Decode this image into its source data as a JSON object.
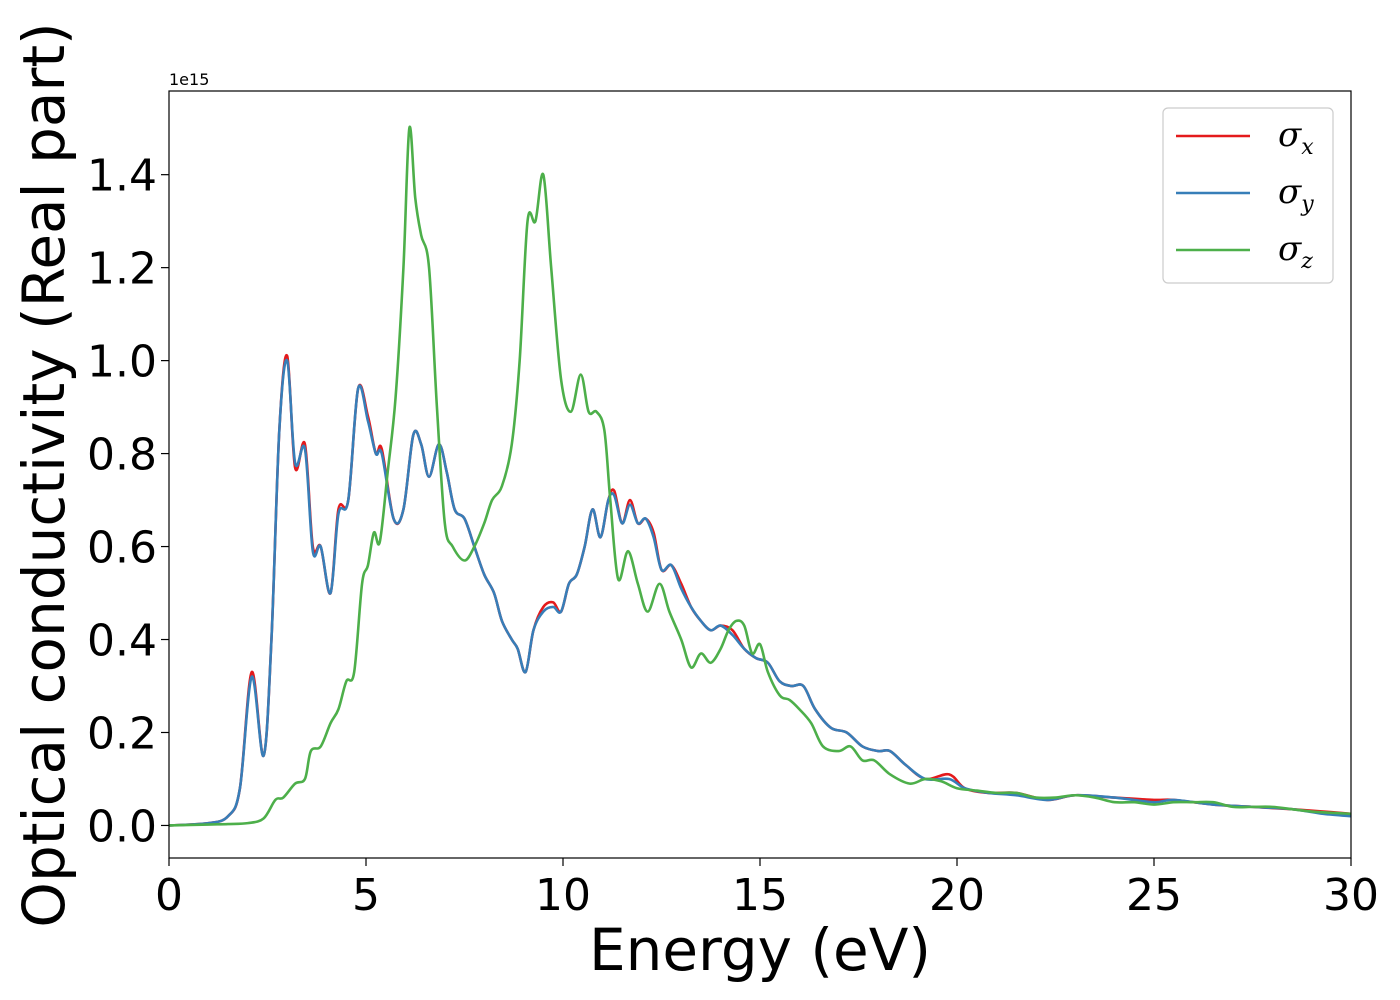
{
  "chart_data": {
    "type": "line",
    "title": "",
    "xlabel": "Energy (eV)",
    "ylabel": "Optical conductivity (Real part)",
    "y_offset_label": "1e15",
    "xlim": [
      0,
      30
    ],
    "ylim": [
      -0.07,
      1.58
    ],
    "x_ticks": [
      0,
      5,
      10,
      15,
      20,
      25,
      30
    ],
    "y_ticks": [
      0.0,
      0.2,
      0.4,
      0.6,
      0.8,
      1.0,
      1.2,
      1.4
    ],
    "x_tick_labels": [
      "0",
      "5",
      "10",
      "15",
      "20",
      "25",
      "30"
    ],
    "y_tick_labels": [
      "0.0",
      "0.2",
      "0.4",
      "0.6",
      "0.8",
      "1.0",
      "1.2",
      "1.4"
    ],
    "grid": false,
    "legend_position": "top-right",
    "series": [
      {
        "name": "σx",
        "legend_symbol": "σ",
        "legend_subscript": "x",
        "color": "#e41a1c",
        "points": [
          [
            0,
            0
          ],
          [
            1,
            0.005
          ],
          [
            1.5,
            0.02
          ],
          [
            1.8,
            0.08
          ],
          [
            2.1,
            0.33
          ],
          [
            2.4,
            0.15
          ],
          [
            2.6,
            0.4
          ],
          [
            2.8,
            0.85
          ],
          [
            3.0,
            1.01
          ],
          [
            3.2,
            0.77
          ],
          [
            3.45,
            0.82
          ],
          [
            3.65,
            0.6
          ],
          [
            3.85,
            0.6
          ],
          [
            4.1,
            0.5
          ],
          [
            4.3,
            0.68
          ],
          [
            4.55,
            0.7
          ],
          [
            4.8,
            0.94
          ],
          [
            5.05,
            0.88
          ],
          [
            5.25,
            0.8
          ],
          [
            5.4,
            0.81
          ],
          [
            5.7,
            0.66
          ],
          [
            5.95,
            0.68
          ],
          [
            6.2,
            0.84
          ],
          [
            6.4,
            0.82
          ],
          [
            6.6,
            0.75
          ],
          [
            6.85,
            0.82
          ],
          [
            7.05,
            0.76
          ],
          [
            7.25,
            0.68
          ],
          [
            7.5,
            0.66
          ],
          [
            7.75,
            0.6
          ],
          [
            8.0,
            0.54
          ],
          [
            8.25,
            0.5
          ],
          [
            8.45,
            0.44
          ],
          [
            8.7,
            0.4
          ],
          [
            8.85,
            0.38
          ],
          [
            9.05,
            0.33
          ],
          [
            9.25,
            0.42
          ],
          [
            9.5,
            0.47
          ],
          [
            9.75,
            0.48
          ],
          [
            9.95,
            0.46
          ],
          [
            10.15,
            0.52
          ],
          [
            10.35,
            0.54
          ],
          [
            10.55,
            0.6
          ],
          [
            10.75,
            0.68
          ],
          [
            10.95,
            0.62
          ],
          [
            11.15,
            0.7
          ],
          [
            11.3,
            0.72
          ],
          [
            11.5,
            0.65
          ],
          [
            11.7,
            0.7
          ],
          [
            11.9,
            0.65
          ],
          [
            12.1,
            0.66
          ],
          [
            12.3,
            0.63
          ],
          [
            12.5,
            0.55
          ],
          [
            12.75,
            0.56
          ],
          [
            13.0,
            0.52
          ],
          [
            13.25,
            0.47
          ],
          [
            13.5,
            0.44
          ],
          [
            13.75,
            0.42
          ],
          [
            14.0,
            0.43
          ],
          [
            14.3,
            0.42
          ],
          [
            14.6,
            0.38
          ],
          [
            14.9,
            0.36
          ],
          [
            15.2,
            0.35
          ],
          [
            15.5,
            0.31
          ],
          [
            15.8,
            0.3
          ],
          [
            16.1,
            0.3
          ],
          [
            16.4,
            0.25
          ],
          [
            16.8,
            0.21
          ],
          [
            17.2,
            0.2
          ],
          [
            17.6,
            0.17
          ],
          [
            18.0,
            0.16
          ],
          [
            18.3,
            0.16
          ],
          [
            18.7,
            0.13
          ],
          [
            19.2,
            0.1
          ],
          [
            19.8,
            0.11
          ],
          [
            20.2,
            0.08
          ],
          [
            20.8,
            0.07
          ],
          [
            21.5,
            0.07
          ],
          [
            22.3,
            0.055
          ],
          [
            23.0,
            0.065
          ],
          [
            24.0,
            0.06
          ],
          [
            25.0,
            0.055
          ],
          [
            25.5,
            0.055
          ],
          [
            26.5,
            0.045
          ],
          [
            27.5,
            0.04
          ],
          [
            28.5,
            0.035
          ],
          [
            29.3,
            0.03
          ],
          [
            30,
            0.025
          ]
        ]
      },
      {
        "name": "σy",
        "legend_symbol": "σ",
        "legend_subscript": "y",
        "color": "#377eb8",
        "points": [
          [
            0,
            0
          ],
          [
            1,
            0.005
          ],
          [
            1.5,
            0.02
          ],
          [
            1.8,
            0.08
          ],
          [
            2.1,
            0.32
          ],
          [
            2.4,
            0.15
          ],
          [
            2.6,
            0.4
          ],
          [
            2.8,
            0.85
          ],
          [
            3.0,
            1.0
          ],
          [
            3.2,
            0.78
          ],
          [
            3.45,
            0.81
          ],
          [
            3.65,
            0.59
          ],
          [
            3.85,
            0.6
          ],
          [
            4.1,
            0.5
          ],
          [
            4.3,
            0.67
          ],
          [
            4.55,
            0.7
          ],
          [
            4.8,
            0.94
          ],
          [
            5.05,
            0.87
          ],
          [
            5.25,
            0.8
          ],
          [
            5.4,
            0.8
          ],
          [
            5.7,
            0.66
          ],
          [
            5.95,
            0.68
          ],
          [
            6.2,
            0.84
          ],
          [
            6.4,
            0.82
          ],
          [
            6.6,
            0.75
          ],
          [
            6.85,
            0.82
          ],
          [
            7.05,
            0.76
          ],
          [
            7.25,
            0.68
          ],
          [
            7.5,
            0.66
          ],
          [
            7.75,
            0.6
          ],
          [
            8.0,
            0.54
          ],
          [
            8.25,
            0.5
          ],
          [
            8.45,
            0.44
          ],
          [
            8.7,
            0.4
          ],
          [
            8.85,
            0.38
          ],
          [
            9.05,
            0.33
          ],
          [
            9.25,
            0.42
          ],
          [
            9.5,
            0.46
          ],
          [
            9.75,
            0.47
          ],
          [
            9.95,
            0.46
          ],
          [
            10.15,
            0.52
          ],
          [
            10.35,
            0.54
          ],
          [
            10.55,
            0.6
          ],
          [
            10.75,
            0.68
          ],
          [
            10.95,
            0.62
          ],
          [
            11.15,
            0.7
          ],
          [
            11.3,
            0.71
          ],
          [
            11.5,
            0.65
          ],
          [
            11.7,
            0.69
          ],
          [
            11.9,
            0.65
          ],
          [
            12.1,
            0.66
          ],
          [
            12.3,
            0.62
          ],
          [
            12.5,
            0.55
          ],
          [
            12.75,
            0.56
          ],
          [
            13.0,
            0.51
          ],
          [
            13.25,
            0.47
          ],
          [
            13.5,
            0.44
          ],
          [
            13.75,
            0.42
          ],
          [
            14.0,
            0.43
          ],
          [
            14.3,
            0.41
          ],
          [
            14.6,
            0.38
          ],
          [
            14.9,
            0.36
          ],
          [
            15.2,
            0.35
          ],
          [
            15.5,
            0.31
          ],
          [
            15.8,
            0.3
          ],
          [
            16.1,
            0.3
          ],
          [
            16.4,
            0.25
          ],
          [
            16.8,
            0.21
          ],
          [
            17.2,
            0.2
          ],
          [
            17.6,
            0.17
          ],
          [
            18.0,
            0.16
          ],
          [
            18.3,
            0.16
          ],
          [
            18.7,
            0.13
          ],
          [
            19.2,
            0.1
          ],
          [
            19.8,
            0.1
          ],
          [
            20.2,
            0.08
          ],
          [
            20.8,
            0.07
          ],
          [
            21.5,
            0.065
          ],
          [
            22.3,
            0.055
          ],
          [
            23.0,
            0.065
          ],
          [
            24.0,
            0.06
          ],
          [
            25.0,
            0.05
          ],
          [
            25.5,
            0.055
          ],
          [
            26.5,
            0.045
          ],
          [
            27.5,
            0.04
          ],
          [
            28.5,
            0.035
          ],
          [
            29.3,
            0.025
          ],
          [
            30,
            0.02
          ]
        ]
      },
      {
        "name": "σz",
        "legend_symbol": "σ",
        "legend_subscript": "z",
        "color": "#4daf4a",
        "points": [
          [
            0,
            0
          ],
          [
            1,
            0.002
          ],
          [
            1.5,
            0.003
          ],
          [
            2.0,
            0.005
          ],
          [
            2.4,
            0.015
          ],
          [
            2.7,
            0.055
          ],
          [
            2.9,
            0.06
          ],
          [
            3.2,
            0.09
          ],
          [
            3.45,
            0.1
          ],
          [
            3.6,
            0.16
          ],
          [
            3.85,
            0.17
          ],
          [
            4.1,
            0.22
          ],
          [
            4.3,
            0.25
          ],
          [
            4.5,
            0.31
          ],
          [
            4.7,
            0.33
          ],
          [
            4.9,
            0.52
          ],
          [
            5.05,
            0.56
          ],
          [
            5.2,
            0.63
          ],
          [
            5.35,
            0.61
          ],
          [
            5.55,
            0.76
          ],
          [
            5.75,
            0.92
          ],
          [
            5.95,
            1.2
          ],
          [
            6.1,
            1.5
          ],
          [
            6.25,
            1.35
          ],
          [
            6.4,
            1.27
          ],
          [
            6.6,
            1.2
          ],
          [
            6.8,
            0.9
          ],
          [
            7.0,
            0.65
          ],
          [
            7.2,
            0.6
          ],
          [
            7.5,
            0.57
          ],
          [
            7.75,
            0.6
          ],
          [
            8.0,
            0.65
          ],
          [
            8.2,
            0.7
          ],
          [
            8.45,
            0.73
          ],
          [
            8.7,
            0.82
          ],
          [
            8.9,
            1.0
          ],
          [
            9.1,
            1.3
          ],
          [
            9.3,
            1.3
          ],
          [
            9.5,
            1.4
          ],
          [
            9.7,
            1.2
          ],
          [
            9.95,
            0.96
          ],
          [
            10.2,
            0.89
          ],
          [
            10.45,
            0.97
          ],
          [
            10.65,
            0.89
          ],
          [
            10.85,
            0.89
          ],
          [
            11.05,
            0.85
          ],
          [
            11.2,
            0.7
          ],
          [
            11.4,
            0.53
          ],
          [
            11.65,
            0.59
          ],
          [
            11.9,
            0.52
          ],
          [
            12.15,
            0.46
          ],
          [
            12.45,
            0.52
          ],
          [
            12.7,
            0.46
          ],
          [
            13.0,
            0.4
          ],
          [
            13.25,
            0.34
          ],
          [
            13.5,
            0.37
          ],
          [
            13.75,
            0.35
          ],
          [
            14.0,
            0.38
          ],
          [
            14.2,
            0.42
          ],
          [
            14.4,
            0.44
          ],
          [
            14.6,
            0.43
          ],
          [
            14.8,
            0.37
          ],
          [
            15.0,
            0.39
          ],
          [
            15.2,
            0.33
          ],
          [
            15.5,
            0.28
          ],
          [
            15.75,
            0.27
          ],
          [
            16.0,
            0.25
          ],
          [
            16.3,
            0.22
          ],
          [
            16.6,
            0.17
          ],
          [
            17.0,
            0.16
          ],
          [
            17.3,
            0.17
          ],
          [
            17.6,
            0.14
          ],
          [
            17.9,
            0.14
          ],
          [
            18.3,
            0.11
          ],
          [
            18.8,
            0.09
          ],
          [
            19.2,
            0.1
          ],
          [
            19.6,
            0.095
          ],
          [
            20.0,
            0.08
          ],
          [
            20.5,
            0.075
          ],
          [
            21.0,
            0.07
          ],
          [
            21.5,
            0.07
          ],
          [
            22.0,
            0.06
          ],
          [
            22.5,
            0.06
          ],
          [
            23.0,
            0.065
          ],
          [
            23.5,
            0.06
          ],
          [
            24.0,
            0.05
          ],
          [
            24.5,
            0.05
          ],
          [
            25.0,
            0.045
          ],
          [
            25.5,
            0.05
          ],
          [
            26.0,
            0.05
          ],
          [
            26.5,
            0.05
          ],
          [
            27.0,
            0.04
          ],
          [
            27.5,
            0.04
          ],
          [
            28.0,
            0.04
          ],
          [
            28.5,
            0.035
          ],
          [
            29.0,
            0.03
          ],
          [
            30,
            0.025
          ]
        ]
      }
    ]
  }
}
